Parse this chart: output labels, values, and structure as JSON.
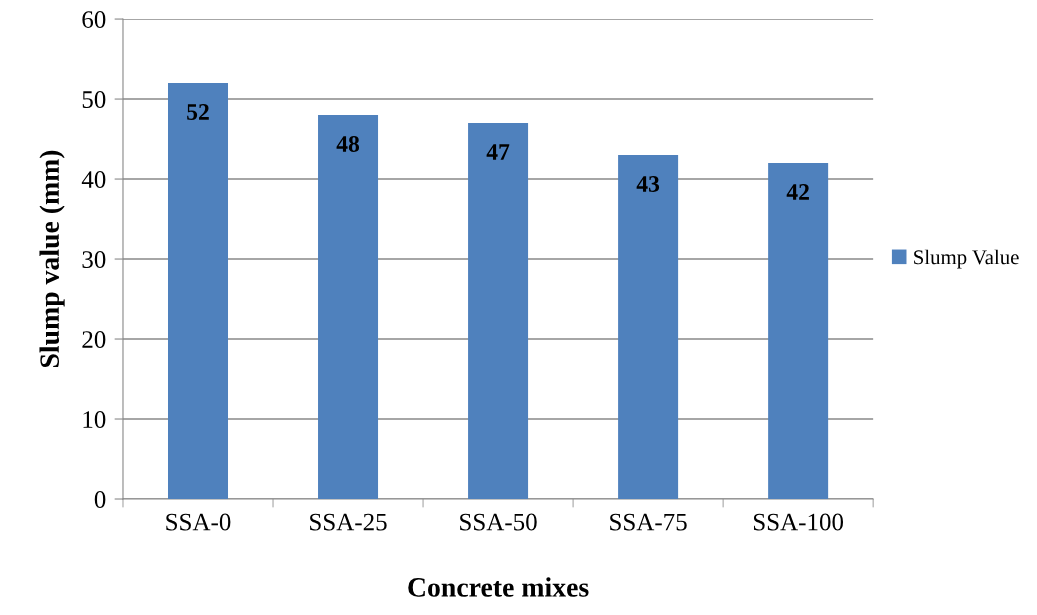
{
  "chart_data": {
    "type": "bar",
    "xlabel": "Concrete mixes",
    "ylabel": "Slump value (mm)",
    "categories": [
      "SSA-0",
      "SSA-25",
      "SSA-50",
      "SSA-75",
      "SSA-100"
    ],
    "series": [
      {
        "name": "Slump Value",
        "color": "#4f81bd",
        "values": [
          52,
          48,
          47,
          43,
          42
        ]
      }
    ],
    "ylim": [
      0,
      60
    ],
    "yticks": [
      0,
      10,
      20,
      30,
      40,
      50,
      60
    ],
    "grid": "y",
    "legend": "right",
    "data_labels": true
  }
}
